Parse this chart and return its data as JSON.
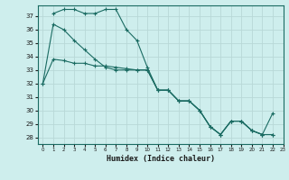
{
  "xlabel": "Humidex (Indice chaleur)",
  "ylabel": "",
  "background_color": "#ceeeed",
  "grid_color": "#b8d8d7",
  "line_color": "#1a6b62",
  "xlim": [
    -0.5,
    23
  ],
  "ylim": [
    27.5,
    37.8
  ],
  "yticks": [
    28,
    29,
    30,
    31,
    32,
    33,
    34,
    35,
    36,
    37
  ],
  "xticks": [
    0,
    1,
    2,
    3,
    4,
    5,
    6,
    7,
    8,
    9,
    10,
    11,
    12,
    13,
    14,
    15,
    16,
    17,
    18,
    19,
    20,
    21,
    22,
    23
  ],
  "series1": {
    "x": [
      1,
      2,
      3,
      4,
      5,
      6,
      7,
      8,
      9,
      10,
      11,
      12,
      13,
      14,
      15,
      16,
      17,
      18,
      19,
      20,
      21,
      22
    ],
    "y": [
      37.2,
      37.5,
      37.5,
      37.2,
      37.2,
      37.5,
      37.5,
      36.0,
      35.2,
      33.2,
      31.5,
      31.5,
      30.7,
      30.7,
      30.0,
      28.8,
      28.2,
      29.2,
      29.2,
      28.5,
      28.2,
      28.2
    ]
  },
  "series2": {
    "x": [
      0,
      1,
      2,
      3,
      4,
      5,
      6,
      7,
      8,
      9,
      10,
      11,
      12,
      13,
      14,
      15,
      16,
      17,
      18,
      19,
      20,
      21,
      22
    ],
    "y": [
      32.0,
      36.4,
      36.0,
      35.2,
      34.5,
      33.8,
      33.2,
      33.0,
      33.0,
      33.0,
      33.0,
      31.5,
      31.5,
      30.7,
      30.7,
      30.0,
      28.8,
      28.2,
      29.2,
      29.2,
      28.5,
      28.2,
      29.8
    ]
  },
  "series3": {
    "x": [
      0,
      1,
      2,
      3,
      4,
      5,
      6,
      7,
      8,
      9,
      10,
      11,
      12,
      13,
      14,
      15,
      16,
      17,
      18,
      19,
      20,
      21,
      22
    ],
    "y": [
      32.0,
      33.8,
      33.7,
      33.5,
      33.5,
      33.3,
      33.3,
      33.2,
      33.1,
      33.0,
      33.0,
      31.5,
      31.5,
      30.7,
      30.7,
      30.0,
      28.8,
      28.2,
      29.2,
      29.2,
      28.5,
      28.2,
      28.2
    ]
  }
}
